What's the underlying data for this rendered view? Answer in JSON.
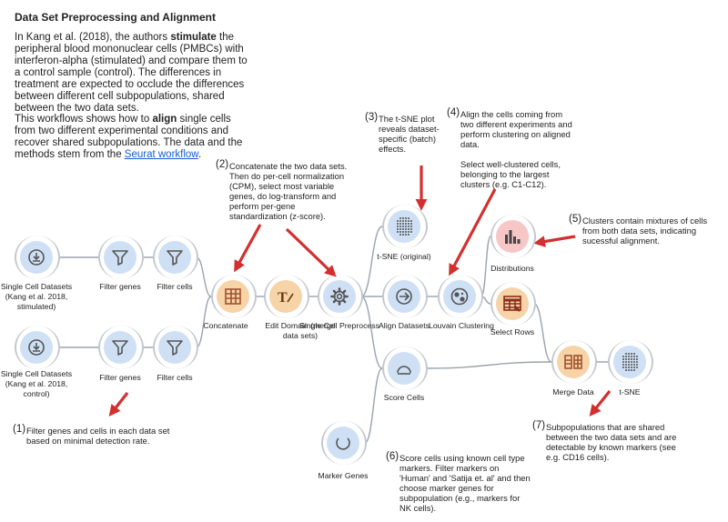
{
  "intro": {
    "title": "Data Set Preprocessing and Alignment",
    "p1": [
      {
        "t": "In Kang et al. (2018), the authors "
      },
      {
        "t": "stimulate",
        "b": true
      },
      {
        "t": " the peripheral blood mononuclear cells (PMBCs) with interferon-alpha (stimulated) and compare them to a control sample (control). The differences in treatment are expected to occlude the differences between different cell subpopulations, shared between the two data sets."
      }
    ],
    "p2": [
      {
        "t": "This workflows shows how to "
      },
      {
        "t": "align",
        "b": true
      },
      {
        "t": " single cells from two different experimental conditions and recover shared subpopulations. The data and the methods stem from the "
      },
      {
        "t": "Seurat workflow",
        "link": true
      },
      {
        "t": "."
      }
    ]
  },
  "notes": [
    {
      "id": "n1",
      "num": "(1)",
      "text": "Filter genes and cells in each data set based on minimal detection rate."
    },
    {
      "id": "n2",
      "num": "(2)",
      "text": "Concatenate the two data sets. Then do per-cell normalization (CPM), select most variable genes, do log-transform and perform per-gene standardization (z-score)."
    },
    {
      "id": "n3",
      "num": "(3)",
      "text": "The t-SNE plot reveals dataset-specific (batch) effects."
    },
    {
      "id": "n4",
      "num": "(4)",
      "text": "Align the cells coming from two different experiments and perform clustering on aligned data.\n\nSelect well-clustered cells, belonging to the largest clusters (e.g. C1-C12)."
    },
    {
      "id": "n5",
      "num": "(5)",
      "text": "Clusters contain mixtures of cells from both data sets, indicating sucessful alignment."
    },
    {
      "id": "n6",
      "num": "(6)",
      "text": "Score cells using known cell type markers. Filter markers on 'Human' and 'Satija et. al' and then choose marker genes for subpopulation (e.g., markers for NK cells)."
    },
    {
      "id": "n7",
      "num": "(7)",
      "text": "Subpopulations that are shared between the two data sets and are detectable by known markers (see e.g. CD16 cells)."
    }
  ],
  "widgets": [
    {
      "id": "sc1",
      "label": "Single Cell Datasets\n(Kang et al. 2018,\nstimulated)",
      "icon": "download-icon",
      "color": "#cfe0f5",
      "iconColor": "#555"
    },
    {
      "id": "fg1",
      "label": "Filter genes",
      "icon": "funnel-icon",
      "color": "#cfe0f5",
      "iconColor": "#555"
    },
    {
      "id": "fc1",
      "label": "Filter cells",
      "icon": "funnel-icon",
      "color": "#cfe0f5",
      "iconColor": "#555"
    },
    {
      "id": "sc2",
      "label": "Single Cell Datasets\n(Kang et al. 2018,\ncontrol)",
      "icon": "download-icon",
      "color": "#cfe0f5",
      "iconColor": "#555"
    },
    {
      "id": "fg2",
      "label": "Filter genes",
      "icon": "funnel-icon",
      "color": "#cfe0f5",
      "iconColor": "#555"
    },
    {
      "id": "fc2",
      "label": "Filter cells",
      "icon": "funnel-icon",
      "color": "#cfe0f5",
      "iconColor": "#555"
    },
    {
      "id": "cat",
      "label": "Concatenate",
      "icon": "table-grid-icon",
      "color": "#f7d3a8",
      "iconColor": "#a0522d"
    },
    {
      "id": "edm",
      "label": "Edit Domain (merge\ndata sets)",
      "icon": "text-edit-icon",
      "color": "#f7d3a8",
      "iconColor": "#6b3b12"
    },
    {
      "id": "scp",
      "label": "Single Cell Preprocess",
      "icon": "gear-icon",
      "color": "#cfe0f5",
      "iconColor": "#555"
    },
    {
      "id": "tso",
      "label": "t-SNE (original)",
      "icon": "dot-matrix-icon",
      "color": "#cfe0f5",
      "iconColor": "#555"
    },
    {
      "id": "ali",
      "label": "Align Datasets",
      "icon": "align-icon",
      "color": "#cfe0f5",
      "iconColor": "#555"
    },
    {
      "id": "lou",
      "label": "Louvain Clustering",
      "icon": "clustering-icon",
      "color": "#cfe0f5",
      "iconColor": "#555"
    },
    {
      "id": "dis",
      "label": "Distributions",
      "icon": "bar-chart-icon",
      "color": "#f7c6c6",
      "iconColor": "#444"
    },
    {
      "id": "sel",
      "label": "Select Rows",
      "icon": "select-rows-icon",
      "color": "#f7d3a8",
      "iconColor": "#8a2e1a"
    },
    {
      "id": "scs",
      "label": "Score Cells",
      "icon": "score-icon",
      "color": "#cfe0f5",
      "iconColor": "#555"
    },
    {
      "id": "mkg",
      "label": "Marker Genes",
      "icon": "marker-ring-icon",
      "color": "#cfe0f5",
      "iconColor": "#555"
    },
    {
      "id": "mrg",
      "label": "Merge Data",
      "icon": "merge-icon",
      "color": "#f7d3a8",
      "iconColor": "#a0522d"
    },
    {
      "id": "tsn",
      "label": "t-SNE",
      "icon": "dot-matrix-icon",
      "color": "#cfe0f5",
      "iconColor": "#555"
    }
  ],
  "colors": {
    "wire": "#9aa3ad",
    "arrow": "#d32f2f",
    "link": "#1a5bd6"
  }
}
